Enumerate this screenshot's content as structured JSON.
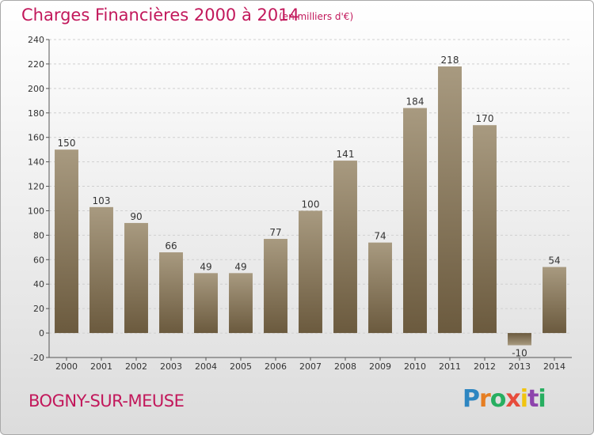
{
  "chart_data": {
    "type": "bar",
    "title": "Charges Financières 2000 à 2014",
    "subtitle": "(en milliers d'€)",
    "categories": [
      "2000",
      "2001",
      "2002",
      "2003",
      "2004",
      "2005",
      "2006",
      "2007",
      "2008",
      "2009",
      "2010",
      "2011",
      "2012",
      "2013",
      "2014"
    ],
    "values": [
      150,
      103,
      90,
      66,
      49,
      49,
      77,
      100,
      141,
      74,
      184,
      218,
      170,
      -10,
      54
    ],
    "value_labels": [
      "150",
      "103",
      "90",
      "66",
      "49",
      "49",
      "77",
      "100",
      "141",
      "74",
      "184",
      "218",
      "170",
      "-10",
      "54"
    ],
    "ylim": [
      -20,
      240
    ],
    "yticks": [
      -20,
      0,
      20,
      40,
      60,
      80,
      100,
      120,
      140,
      160,
      180,
      200,
      220,
      240
    ],
    "grid": true,
    "bar_colors": {
      "top": "#a89a80",
      "bottom": "#6b5a3e"
    }
  },
  "footer": {
    "commune": "BOGNY-SUR-MEUSE",
    "logo_letters": [
      {
        "char": "P",
        "color": "#2e86c1"
      },
      {
        "char": "r",
        "color": "#e67e22"
      },
      {
        "char": "o",
        "color": "#27ae60"
      },
      {
        "char": "x",
        "color": "#e74c3c"
      },
      {
        "char": "i",
        "color": "#f1c40f"
      },
      {
        "char": "t",
        "color": "#8e44ad"
      },
      {
        "char": "i",
        "color": "#27ae60"
      }
    ]
  }
}
